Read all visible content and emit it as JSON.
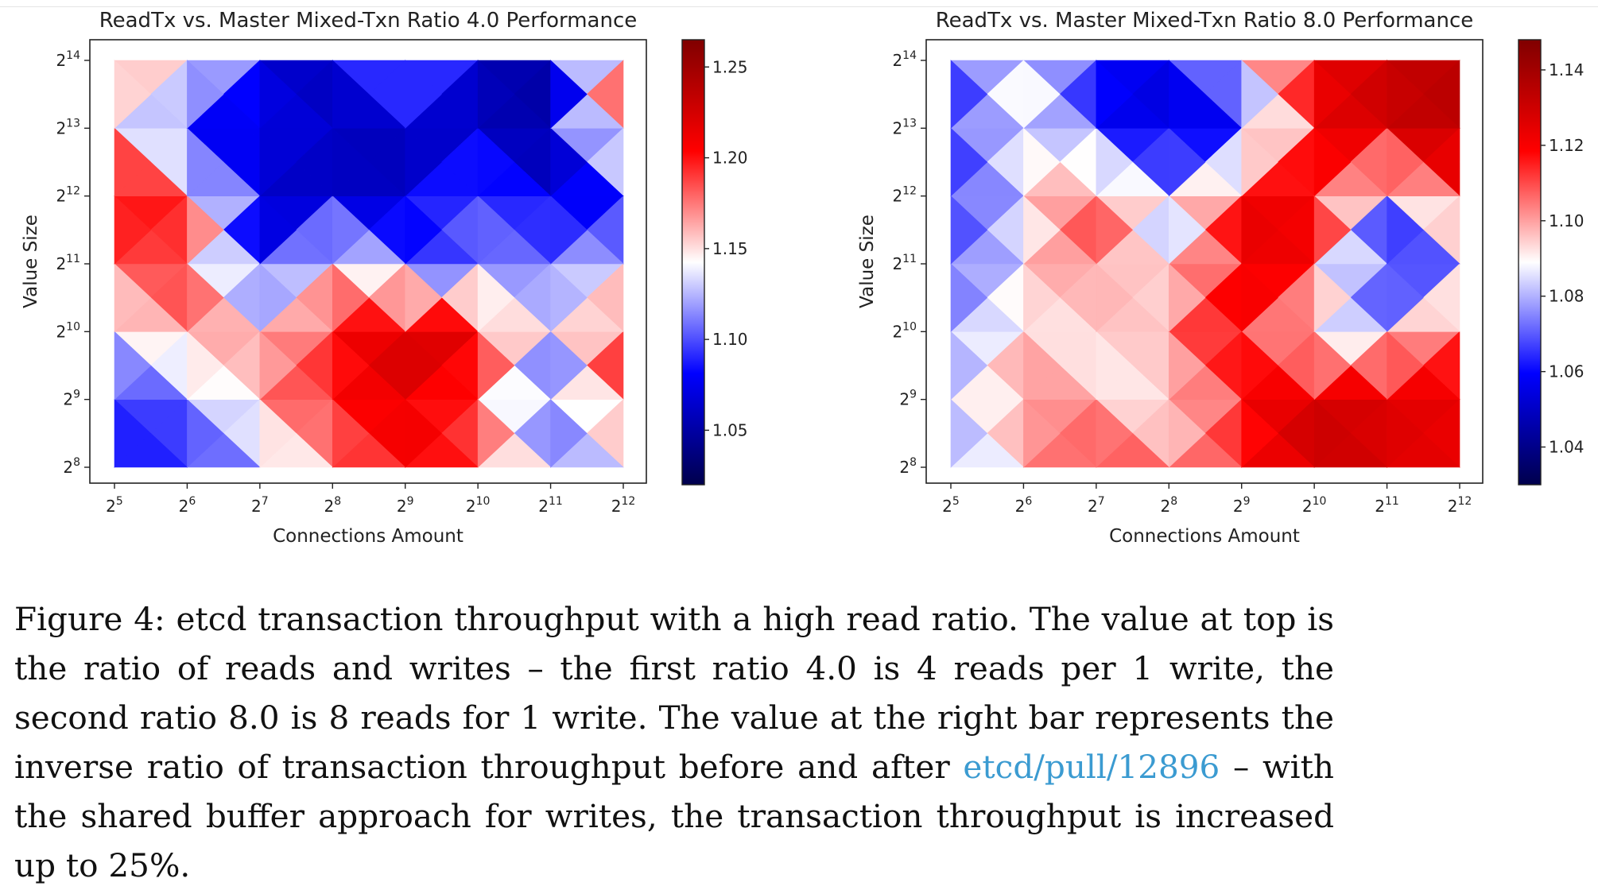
{
  "chart_data": [
    {
      "type": "heatmap",
      "title": "ReadTx vs. Master Mixed-Txn Ratio 4.0 Performance",
      "xlabel": "Connections Amount",
      "ylabel": "Value Size",
      "x_base": "2",
      "x_exponents": [
        "5",
        "6",
        "7",
        "8",
        "9",
        "10",
        "11",
        "12"
      ],
      "y_base": "2",
      "y_exponents": [
        "8",
        "9",
        "10",
        "11",
        "12",
        "13",
        "14"
      ],
      "colorbar": {
        "min": 1.02,
        "max": 1.265,
        "ticks": [
          "1.05",
          "1.10",
          "1.15",
          "1.20",
          "1.25"
        ]
      },
      "grid_values": [
        [
          1.075,
          1.075,
          1.125,
          1.185,
          1.232,
          1.195,
          1.13
        ],
        [
          1.075,
          1.1,
          1.19,
          1.21,
          1.195,
          1.04,
          1.2
        ],
        [
          1.11,
          1.175,
          1.155,
          1.05,
          1.04,
          1.065,
          1.05
        ],
        [
          1.17,
          1.215,
          1.202,
          1.175,
          1.045,
          1.04,
          1.04
        ],
        [
          1.225,
          1.232,
          1.255,
          1.085,
          1.04,
          1.04,
          1.135
        ],
        [
          1.2,
          1.195,
          1.225,
          1.085,
          1.115,
          1.04,
          1.04
        ],
        [
          1.11,
          1.08,
          1.1,
          1.12,
          1.035,
          1.03,
          1.03
        ],
        [
          1.125,
          1.215,
          1.225,
          1.12,
          1.075,
          1.215,
          1.215
        ]
      ]
    },
    {
      "type": "heatmap",
      "title": "ReadTx vs. Master Mixed-Txn Ratio 8.0 Performance",
      "xlabel": "Connections Amount",
      "ylabel": "Value Size",
      "x_base": "2",
      "x_exponents": [
        "5",
        "6",
        "7",
        "8",
        "9",
        "10",
        "11",
        "12"
      ],
      "y_base": "2",
      "y_exponents": [
        "8",
        "9",
        "10",
        "11",
        "12",
        "13",
        "14"
      ],
      "colorbar": {
        "min": 1.03,
        "max": 1.148,
        "ticks": [
          "1.04",
          "1.06",
          "1.08",
          "1.10",
          "1.12",
          "1.14"
        ]
      },
      "grid_values": [
        [
          1.075,
          1.075,
          1.072,
          1.062,
          1.058,
          1.055,
          1.055
        ],
        [
          1.095,
          1.11,
          1.098,
          1.09,
          1.085,
          1.095,
          1.095
        ],
        [
          1.125,
          1.098,
          1.085,
          1.115,
          1.12,
          1.058,
          1.05
        ],
        [
          1.105,
          1.085,
          1.11,
          1.08,
          1.072,
          1.04,
          1.052
        ],
        [
          1.118,
          1.125,
          1.128,
          1.135,
          1.128,
          1.052,
          1.09
        ],
        [
          1.142,
          1.138,
          1.08,
          1.125,
          1.13,
          1.13,
          1.128
        ],
        [
          1.135,
          1.135,
          1.085,
          1.035,
          1.072,
          1.14,
          1.14
        ],
        [
          1.13,
          1.13,
          1.12,
          1.08,
          1.128,
          1.145,
          1.145
        ]
      ]
    }
  ],
  "caption": {
    "before": "Figure 4: etcd transaction throughput with a high read ratio. The value at top is the ratio of reads and writes – the first ratio 4.0 is 4 reads per 1 write, the second ratio 8.0 is 8 reads for 1 write. The value at the right bar represents the inverse ratio of transaction throughput before and after ",
    "link": "etcd/pull/12896",
    "after": " – with the shared buffer approach for writes, the transaction throughput is increased up to 25%."
  }
}
